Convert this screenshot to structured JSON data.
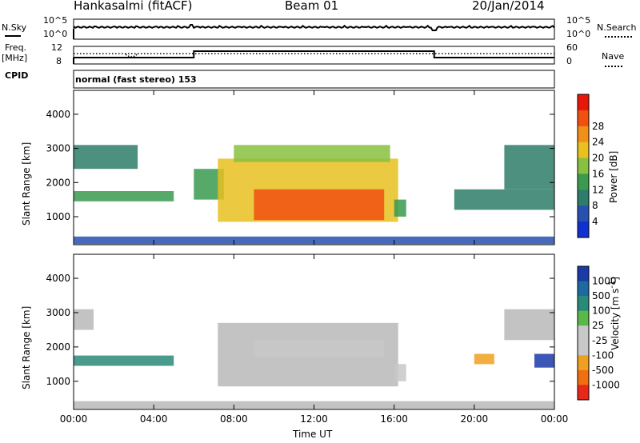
{
  "header": {
    "station": "Hankasalmi (fitACF)",
    "beam": "Beam 01",
    "date": "20/Jan/2014"
  },
  "aux": {
    "nsky_label": "N.Sky",
    "nsearch_label": "N.Search",
    "nsky_ticks": [
      "10^5",
      "10^0"
    ],
    "nsearch_ticks": [
      "10^5",
      "10^0"
    ],
    "freq_label": "Freq.",
    "freq_unit": "[MHz]",
    "freq_ticks": [
      "12",
      "8"
    ],
    "nave_label": "Nave",
    "nave_ticks": [
      "60",
      "0"
    ],
    "cpid_label": "CPID",
    "cpid_text": "normal (fast stereo) 153"
  },
  "colors": {
    "power_scale": [
      "#1030d0",
      "#2850b0",
      "#2e7d6a",
      "#3a9a50",
      "#88c040",
      "#e8c020",
      "#f09018",
      "#f05010",
      "#e81808"
    ],
    "velocity_scale": [
      "#1a3aa8",
      "#1c6aa0",
      "#2a8a78",
      "#5ab84a",
      "#c8c8c8",
      "#c8c8c8",
      "#f0a020",
      "#f07010",
      "#e82818"
    ],
    "ground_scatter": "#b8b8b8"
  },
  "chart_data": [
    {
      "type": "heatmap",
      "panel": "power",
      "ylabel": "Slant Range [km]",
      "xlabel": "Time UT",
      "x_ticks": [
        "00:00",
        "04:00",
        "08:00",
        "12:00",
        "16:00",
        "20:00",
        "00:00"
      ],
      "xlim": [
        0,
        24
      ],
      "y_ticks": [
        "1000",
        "2000",
        "3000",
        "4000"
      ],
      "ylim": [
        180,
        4700
      ],
      "colorbar": {
        "label": "Power [dB]",
        "ticks": [
          "4",
          "8",
          "12",
          "16",
          "20",
          "24",
          "28"
        ],
        "range": [
          0,
          30
        ]
      },
      "regions": [
        {
          "t0": 0.0,
          "t1": 3.2,
          "r0": 2400,
          "r1": 3100,
          "value": 8
        },
        {
          "t0": 0.0,
          "t1": 5.0,
          "r0": 1450,
          "r1": 1750,
          "value": 10
        },
        {
          "t0": 0.0,
          "t1": 24.0,
          "r0": 200,
          "r1": 420,
          "value": 6
        },
        {
          "t0": 6.0,
          "t1": 7.5,
          "r0": 1500,
          "r1": 2400,
          "value": 12
        },
        {
          "t0": 7.2,
          "t1": 16.2,
          "r0": 850,
          "r1": 2700,
          "value": 18
        },
        {
          "t0": 9.0,
          "t1": 15.5,
          "r0": 900,
          "r1": 1800,
          "value": 25
        },
        {
          "t0": 8.0,
          "t1": 15.8,
          "r0": 2600,
          "r1": 3100,
          "value": 14
        },
        {
          "t0": 16.0,
          "t1": 16.6,
          "r0": 1000,
          "r1": 1500,
          "value": 11
        },
        {
          "t0": 19.0,
          "t1": 24.0,
          "r0": 1200,
          "r1": 1800,
          "value": 9
        },
        {
          "t0": 21.5,
          "t1": 24.0,
          "r0": 1800,
          "r1": 3100,
          "value": 9
        }
      ]
    },
    {
      "type": "heatmap",
      "panel": "velocity",
      "ylabel": "Slant Range [km]",
      "xlabel": "Time UT",
      "x_ticks": [
        "00:00",
        "04:00",
        "08:00",
        "12:00",
        "16:00",
        "20:00",
        "00:00"
      ],
      "xlim": [
        0,
        24
      ],
      "y_ticks": [
        "1000",
        "2000",
        "3000",
        "4000"
      ],
      "ylim": [
        180,
        4700
      ],
      "colorbar": {
        "label": "Velocity [m s^-1]",
        "ticks": [
          "1000",
          "500",
          "100",
          "25",
          "-25",
          "-100",
          "-500",
          "-1000"
        ],
        "range": [
          1000,
          -1000
        ]
      },
      "regions": [
        {
          "t0": 0.0,
          "t1": 1.0,
          "r0": 2500,
          "r1": 3100,
          "value": 0
        },
        {
          "t0": 0.0,
          "t1": 5.0,
          "r0": 1450,
          "r1": 1750,
          "value": 60
        },
        {
          "t0": 0.0,
          "t1": 24.0,
          "r0": 200,
          "r1": 420,
          "value": 0
        },
        {
          "t0": 7.2,
          "t1": 16.2,
          "r0": 850,
          "r1": 2700,
          "value": 0
        },
        {
          "t0": 9.0,
          "t1": 15.5,
          "r0": 1700,
          "r1": 2200,
          "value": -150
        },
        {
          "t0": 16.0,
          "t1": 16.6,
          "r0": 1000,
          "r1": 1500,
          "value": -150
        },
        {
          "t0": 20.0,
          "t1": 21.0,
          "r0": 1500,
          "r1": 1800,
          "value": -800
        },
        {
          "t0": 23.0,
          "t1": 24.0,
          "r0": 1400,
          "r1": 1800,
          "value": 500
        },
        {
          "t0": 21.5,
          "t1": 24.0,
          "r0": 2200,
          "r1": 3100,
          "value": 0
        }
      ]
    }
  ]
}
